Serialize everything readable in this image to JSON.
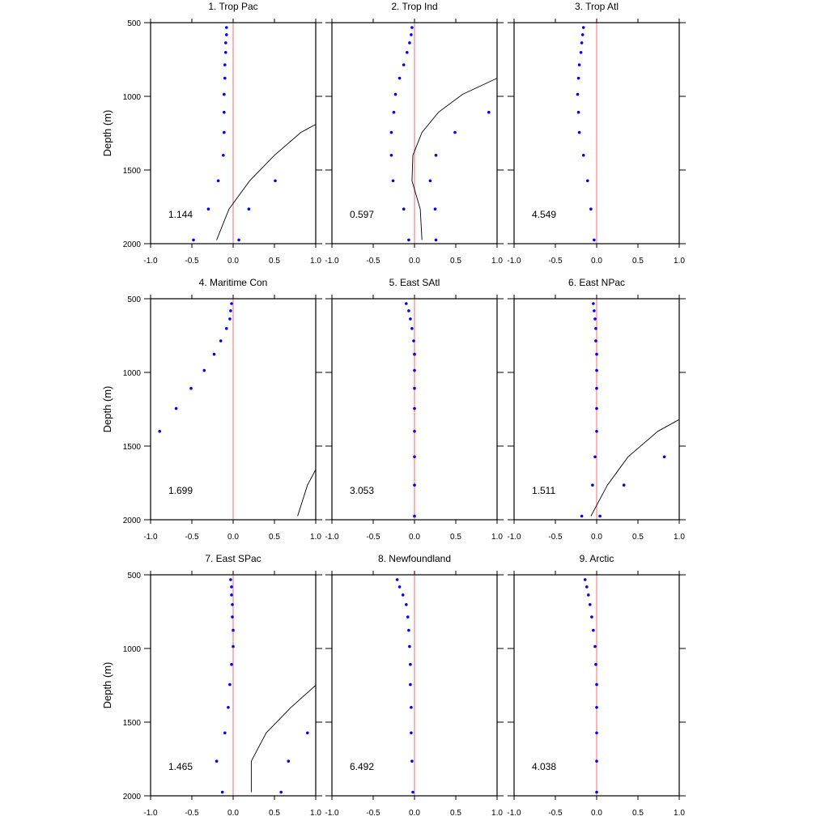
{
  "chart_data": {
    "type": "scatter",
    "ylabel": "Depth (m)",
    "xlim": [
      -1.0,
      1.0
    ],
    "ylim": [
      500,
      2000
    ],
    "y_inverted": true,
    "xticks": [
      -1.0,
      -0.5,
      0.0,
      0.5,
      1.0
    ],
    "xtick_labels": [
      "-1.0",
      "-0.5",
      "0.0",
      "0.5",
      "1.0"
    ],
    "yticks": [
      500,
      1000,
      1500,
      2000
    ],
    "ytick_labels": [
      "500",
      "1000",
      "1500",
      "2000"
    ],
    "colors": {
      "points": "#0000ff",
      "zero_line": "#ff8080",
      "curve": "#000000",
      "frame": "#000000"
    },
    "panels": [
      {
        "title": "1. Trop Pac",
        "annotation": "1.144",
        "points": [
          [
            -0.08,
            533
          ],
          [
            -0.08,
            582
          ],
          [
            -0.09,
            637
          ],
          [
            -0.09,
            702
          ],
          [
            -0.1,
            786
          ],
          [
            -0.1,
            877
          ],
          [
            -0.11,
            987
          ],
          [
            -0.11,
            1108
          ],
          [
            -0.11,
            1245
          ],
          [
            -0.12,
            1400
          ],
          [
            -0.18,
            1573
          ],
          [
            -0.3,
            1765
          ],
          [
            -0.48,
            1975
          ],
          [
            0.07,
            1975
          ],
          [
            0.19,
            1765
          ],
          [
            0.51,
            1573
          ]
        ],
        "curve": [
          [
            -0.2,
            1975
          ],
          [
            -0.05,
            1765
          ],
          [
            0.2,
            1573
          ],
          [
            0.5,
            1400
          ],
          [
            0.82,
            1245
          ],
          [
            1.0,
            1190
          ]
        ]
      },
      {
        "title": "2. Trop Ind",
        "annotation": "0.597",
        "points": [
          [
            -0.03,
            533
          ],
          [
            -0.04,
            582
          ],
          [
            -0.06,
            637
          ],
          [
            -0.09,
            702
          ],
          [
            -0.13,
            786
          ],
          [
            -0.18,
            877
          ],
          [
            -0.23,
            987
          ],
          [
            -0.25,
            1108
          ],
          [
            -0.28,
            1245
          ],
          [
            -0.28,
            1400
          ],
          [
            -0.26,
            1573
          ],
          [
            -0.13,
            1765
          ],
          [
            -0.07,
            1975
          ],
          [
            0.26,
            1975
          ],
          [
            0.25,
            1765
          ],
          [
            0.19,
            1573
          ],
          [
            0.26,
            1400
          ],
          [
            0.49,
            1245
          ],
          [
            0.9,
            1108
          ]
        ],
        "curve": [
          [
            0.09,
            1975
          ],
          [
            0.07,
            1765
          ],
          [
            -0.03,
            1573
          ],
          [
            -0.02,
            1400
          ],
          [
            0.09,
            1245
          ],
          [
            0.29,
            1108
          ],
          [
            0.58,
            987
          ],
          [
            1.0,
            877
          ]
        ]
      },
      {
        "title": "3. Trop Atl",
        "annotation": "4.549",
        "points": [
          [
            -0.16,
            533
          ],
          [
            -0.17,
            582
          ],
          [
            -0.18,
            637
          ],
          [
            -0.19,
            702
          ],
          [
            -0.21,
            786
          ],
          [
            -0.22,
            877
          ],
          [
            -0.23,
            987
          ],
          [
            -0.22,
            1108
          ],
          [
            -0.21,
            1245
          ],
          [
            -0.16,
            1400
          ],
          [
            -0.11,
            1573
          ],
          [
            -0.07,
            1765
          ],
          [
            -0.03,
            1975
          ]
        ],
        "curve": []
      },
      {
        "title": "4. Maritime Con",
        "annotation": "1.699",
        "points": [
          [
            -0.02,
            533
          ],
          [
            -0.03,
            582
          ],
          [
            -0.04,
            637
          ],
          [
            -0.08,
            702
          ],
          [
            -0.15,
            786
          ],
          [
            -0.23,
            877
          ],
          [
            -0.35,
            987
          ],
          [
            -0.51,
            1108
          ],
          [
            -0.69,
            1245
          ],
          [
            -0.89,
            1400
          ]
        ],
        "curve": [
          [
            0.78,
            1975
          ],
          [
            0.9,
            1765
          ],
          [
            1.0,
            1660
          ]
        ]
      },
      {
        "title": "5. East SAtl",
        "annotation": "3.053",
        "points": [
          [
            -0.1,
            533
          ],
          [
            -0.07,
            582
          ],
          [
            -0.05,
            637
          ],
          [
            -0.03,
            702
          ],
          [
            -0.01,
            786
          ],
          [
            0.0,
            877
          ],
          [
            0.0,
            987
          ],
          [
            0.0,
            1108
          ],
          [
            0.0,
            1245
          ],
          [
            0.0,
            1400
          ],
          [
            0.0,
            1573
          ],
          [
            0.0,
            1765
          ],
          [
            0.0,
            1975
          ]
        ],
        "curve": []
      },
      {
        "title": "6. East NPac",
        "annotation": "1.511",
        "points": [
          [
            -0.04,
            533
          ],
          [
            -0.03,
            582
          ],
          [
            -0.02,
            637
          ],
          [
            -0.01,
            702
          ],
          [
            -0.01,
            786
          ],
          [
            0.0,
            877
          ],
          [
            0.0,
            987
          ],
          [
            0.0,
            1108
          ],
          [
            0.0,
            1245
          ],
          [
            0.0,
            1400
          ],
          [
            -0.02,
            1573
          ],
          [
            -0.05,
            1765
          ],
          [
            -0.18,
            1975
          ],
          [
            0.04,
            1975
          ],
          [
            0.33,
            1765
          ],
          [
            0.82,
            1573
          ]
        ],
        "curve": [
          [
            -0.07,
            1975
          ],
          [
            0.13,
            1765
          ],
          [
            0.38,
            1573
          ],
          [
            0.74,
            1400
          ],
          [
            1.0,
            1320
          ]
        ]
      },
      {
        "title": "7. East SPac",
        "annotation": "1.465",
        "points": [
          [
            -0.03,
            533
          ],
          [
            -0.02,
            582
          ],
          [
            -0.02,
            637
          ],
          [
            -0.01,
            702
          ],
          [
            -0.01,
            786
          ],
          [
            0.0,
            877
          ],
          [
            0.0,
            987
          ],
          [
            -0.02,
            1108
          ],
          [
            -0.04,
            1245
          ],
          [
            -0.06,
            1400
          ],
          [
            -0.1,
            1573
          ],
          [
            -0.2,
            1765
          ],
          [
            -0.13,
            1975
          ],
          [
            0.58,
            1975
          ],
          [
            0.67,
            1765
          ],
          [
            0.9,
            1573
          ]
        ],
        "curve": [
          [
            0.22,
            1975
          ],
          [
            0.22,
            1765
          ],
          [
            0.4,
            1573
          ],
          [
            0.7,
            1400
          ],
          [
            1.0,
            1250
          ]
        ]
      },
      {
        "title": "8. Newfoundland",
        "annotation": "6.492",
        "points": [
          [
            -0.21,
            533
          ],
          [
            -0.18,
            582
          ],
          [
            -0.14,
            637
          ],
          [
            -0.1,
            702
          ],
          [
            -0.08,
            786
          ],
          [
            -0.07,
            877
          ],
          [
            -0.06,
            987
          ],
          [
            -0.05,
            1108
          ],
          [
            -0.05,
            1245
          ],
          [
            -0.04,
            1400
          ],
          [
            -0.04,
            1573
          ],
          [
            -0.03,
            1765
          ],
          [
            -0.02,
            1975
          ]
        ],
        "curve": []
      },
      {
        "title": "9. Arctic",
        "annotation": "4.038",
        "points": [
          [
            -0.14,
            533
          ],
          [
            -0.12,
            582
          ],
          [
            -0.1,
            637
          ],
          [
            -0.08,
            702
          ],
          [
            -0.06,
            786
          ],
          [
            -0.04,
            877
          ],
          [
            -0.02,
            987
          ],
          [
            -0.01,
            1108
          ],
          [
            0.0,
            1245
          ],
          [
            0.0,
            1400
          ],
          [
            0.0,
            1573
          ],
          [
            0.0,
            1765
          ],
          [
            0.0,
            1975
          ]
        ],
        "curve": []
      }
    ]
  }
}
